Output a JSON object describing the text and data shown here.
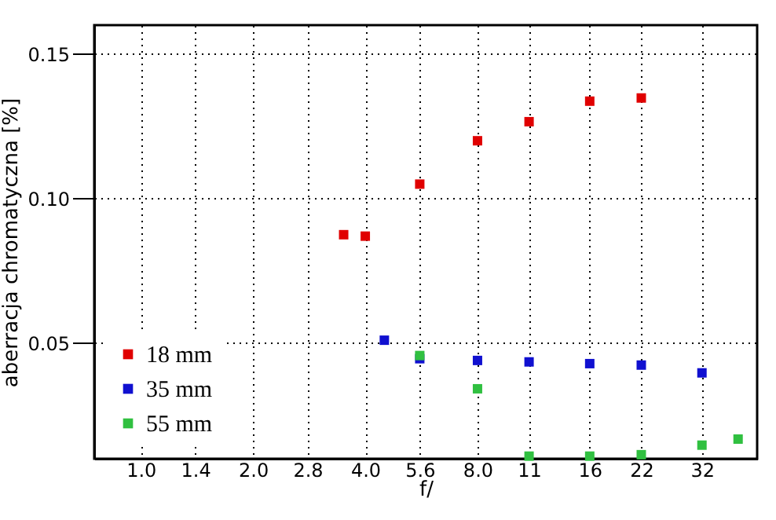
{
  "chart_data": {
    "type": "scatter",
    "xlabel": "f/",
    "ylabel": "aberracja chromatyczna [%]",
    "log": "x",
    "xlim": [
      0.75,
      45
    ],
    "xticks": [
      {
        "value": 1,
        "label": "1.0"
      },
      1.4,
      {
        "value": 2,
        "label": "2.0"
      },
      2.8,
      {
        "value": 4,
        "label": "4.0"
      },
      5.6,
      {
        "value": 8,
        "label": "8.0"
      },
      11,
      16,
      22,
      32
    ],
    "ylim": [
      0.01,
      0.16
    ],
    "yticks": [
      0.05,
      {
        "value": 0.1,
        "label": "0.10"
      },
      0.15
    ],
    "grid": true,
    "legend": "bottom left",
    "marker": "square",
    "series": [
      {
        "name": "18 mm",
        "color": "#e00000",
        "x": [
          3.5,
          4,
          5.6,
          8,
          11,
          16,
          22
        ],
        "values": [
          0.0875,
          0.087,
          0.105,
          0.12,
          0.1266,
          0.1337,
          0.1348
        ]
      },
      {
        "name": "35 mm",
        "color": "#1010d0",
        "x": [
          4.5,
          5.6,
          8,
          11,
          16,
          22,
          32
        ],
        "values": [
          0.051,
          0.0446,
          0.044,
          0.0435,
          0.0429,
          0.0424,
          0.0397
        ]
      },
      {
        "name": "55 mm",
        "color": "#30c040",
        "x": [
          5.6,
          8,
          11,
          16,
          22,
          32,
          40
        ],
        "values": [
          0.0457,
          0.0342,
          0.0109,
          0.0109,
          0.0114,
          0.0147,
          0.0168
        ]
      }
    ]
  }
}
